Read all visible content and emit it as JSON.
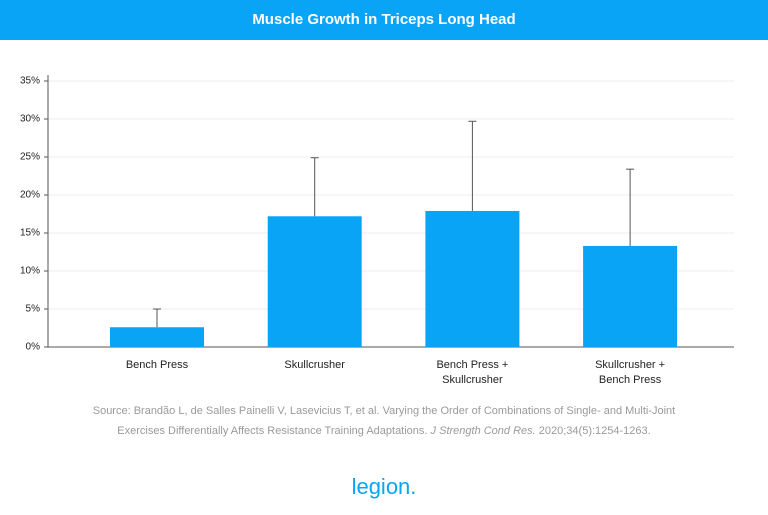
{
  "chart_data": {
    "type": "bar",
    "title": "Muscle Growth in Triceps Long Head",
    "categories": [
      "Bench Press",
      "Skullcrusher",
      "Bench Press +\nSkullcrusher",
      "Skullcrusher +\nBench Press"
    ],
    "values": [
      2.6,
      17.2,
      17.9,
      13.3
    ],
    "errors": [
      2.4,
      7.7,
      11.8,
      10.1
    ],
    "color": "#0aa4f6",
    "ylim": [
      0,
      35
    ],
    "yticks": [
      {
        "value": 0,
        "label": "0%"
      },
      {
        "value": 5,
        "label": "5%"
      },
      {
        "value": 10,
        "label": "10%"
      },
      {
        "value": 15,
        "label": "15%"
      },
      {
        "value": 20,
        "label": "20%"
      },
      {
        "value": 25,
        "label": "25%"
      },
      {
        "value": 30,
        "label": "30%"
      },
      {
        "value": 35,
        "label": "35%"
      }
    ],
    "grid": true,
    "source": [
      "Source: Brandão L, de Salles Painelli V, Lasevicius T, et al. Varying the Order of Combinations of Single- and Multi-Joint",
      "Exercises Differentially Affects Resistance Training Adaptations. ",
      "J Strength Cond Res.",
      " 2020;34(5):1254-1263."
    ],
    "brand": "legion."
  }
}
